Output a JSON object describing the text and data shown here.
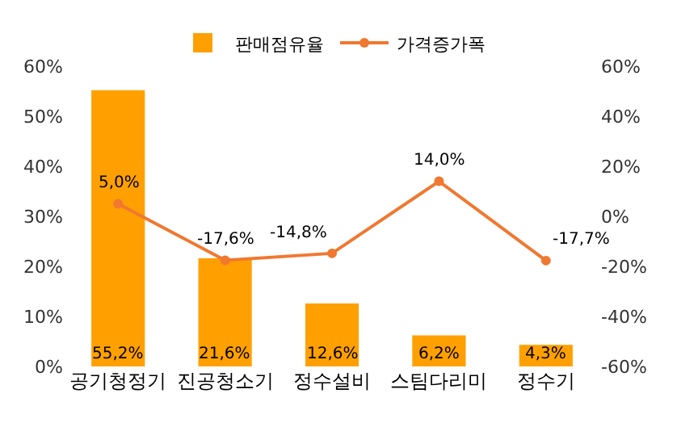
{
  "chart_data": {
    "type": "bar",
    "categories": [
      "공기청정기",
      "진공청소기",
      "정수설비",
      "스팀다리미",
      "정수기"
    ],
    "series": [
      {
        "name": "판매점유율",
        "color": "#ffa000",
        "values": [
          55.2,
          21.6,
          12.6,
          6.2,
          4.3
        ],
        "value_labels": [
          "55,2%",
          "21,6%",
          "12,6%",
          "6,2%",
          "4,3%"
        ]
      },
      {
        "name": "가격증가폭",
        "type": "line",
        "axis": "y2",
        "color": "#f07830",
        "marker": "circle",
        "values": [
          5.0,
          -17.6,
          -14.8,
          14.0,
          -17.7
        ],
        "value_labels": [
          "5,0%",
          "-17,6%",
          "-14,8%",
          "14,0%",
          "-17,7%"
        ]
      }
    ],
    "ylim": [
      0,
      60
    ],
    "yticks": [
      {
        "value": 0,
        "label": "0%"
      },
      {
        "value": 10,
        "label": "10%"
      },
      {
        "value": 20,
        "label": "20%"
      },
      {
        "value": 30,
        "label": "30%"
      },
      {
        "value": 40,
        "label": "40%"
      },
      {
        "value": 50,
        "label": "50%"
      },
      {
        "value": 60,
        "label": "60%"
      }
    ],
    "y2lim": [
      -60,
      60
    ],
    "y2ticks": [
      {
        "value": -60,
        "label": "-60%"
      },
      {
        "value": -40,
        "label": "-40%"
      },
      {
        "value": -20,
        "label": "-20%"
      },
      {
        "value": 0,
        "label": "0%"
      },
      {
        "value": 20,
        "label": "20%"
      },
      {
        "value": 40,
        "label": "40%"
      },
      {
        "value": 60,
        "label": "60%"
      }
    ],
    "grid": false,
    "legend": "top"
  }
}
